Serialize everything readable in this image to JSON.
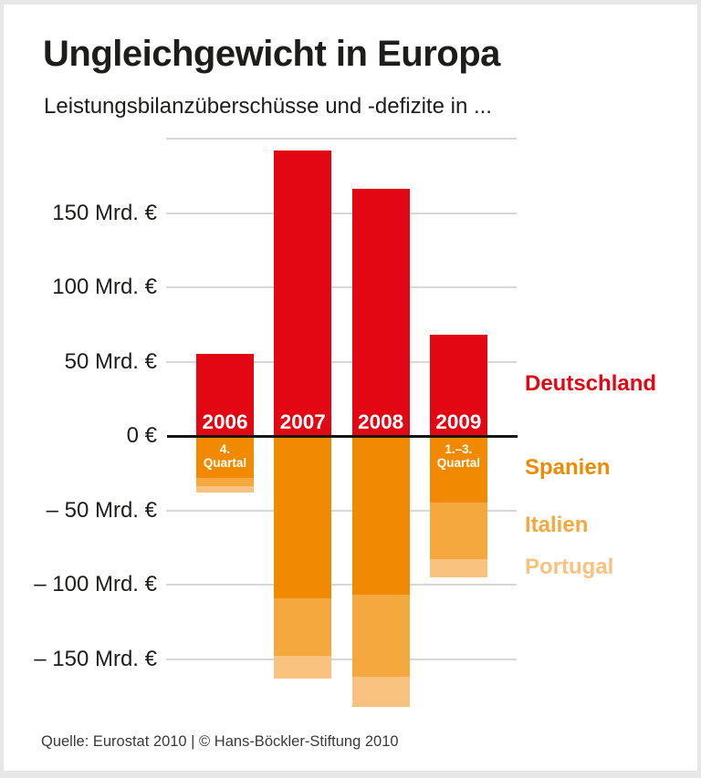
{
  "header": {
    "title": "Ungleichgewicht in Europa",
    "subtitle": "Leistungsbilanzüberschüsse und -defizite in ..."
  },
  "chart_data": {
    "type": "bar",
    "stacked": true,
    "title": "Ungleichgewicht in Europa",
    "subtitle": "Leistungsbilanzüberschüsse und -defizite in ...",
    "unit": "Mrd. €",
    "categories": [
      "2006",
      "2007",
      "2008",
      "2009"
    ],
    "category_notes": [
      "4.\nQuartal",
      "",
      "",
      "1.–3.\nQuartal"
    ],
    "series": [
      {
        "name": "Deutschland",
        "color": "#e30613",
        "values": [
          55,
          192,
          166,
          68
        ]
      },
      {
        "name": "Spanien",
        "color": "#f18a00",
        "values": [
          -28,
          -109,
          -107,
          -45
        ]
      },
      {
        "name": "Italien",
        "color": "#f5a83e",
        "values": [
          -6,
          -39,
          -55,
          -38
        ]
      },
      {
        "name": "Portugal",
        "color": "#f9c27f",
        "values": [
          -4,
          -15,
          -20,
          -12
        ]
      }
    ],
    "yticks": [
      {
        "value": 200,
        "label": ""
      },
      {
        "value": 150,
        "label": "150 Mrd. €"
      },
      {
        "value": 100,
        "label": "100 Mrd. €"
      },
      {
        "value": 50,
        "label": "50 Mrd. €"
      },
      {
        "value": 0,
        "label": "0 €"
      },
      {
        "value": -50,
        "label": "– 50 Mrd. €"
      },
      {
        "value": -100,
        "label": "– 100 Mrd. €"
      },
      {
        "value": -150,
        "label": "– 150 Mrd. €"
      }
    ],
    "ylim": [
      -200,
      200
    ],
    "grid": true,
    "zero_line": true,
    "legend_position": "right"
  },
  "footer": {
    "source": "Quelle: Eurostat 2010 | © Hans-Böckler-Stiftung 2010"
  }
}
